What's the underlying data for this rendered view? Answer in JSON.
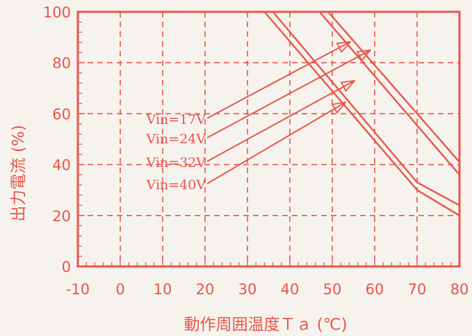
{
  "colors": {
    "primary": "#e8554a",
    "paper": "#f6f3ee"
  },
  "chart_data": {
    "type": "line",
    "title": "",
    "xlabel": "動作周囲温度Ｔａ (℃)",
    "ylabel": "出力電流 (%)",
    "xlim": [
      -10,
      80
    ],
    "ylim": [
      0,
      100
    ],
    "x_ticks": [
      -10,
      0,
      10,
      20,
      30,
      40,
      50,
      60,
      70,
      80
    ],
    "y_ticks": [
      0,
      20,
      40,
      60,
      80,
      100
    ],
    "grid": true,
    "series": [
      {
        "name": "Vin=17V",
        "x": [
          -10,
          49,
          80
        ],
        "y": [
          100,
          100,
          41
        ]
      },
      {
        "name": "Vin=24V",
        "x": [
          -10,
          47,
          80
        ],
        "y": [
          100,
          100,
          36
        ]
      },
      {
        "name": "Vin=32V",
        "x": [
          -10,
          36,
          70,
          80
        ],
        "y": [
          100,
          100,
          33,
          24
        ]
      },
      {
        "name": "Vin=40V",
        "x": [
          -10,
          34,
          70,
          80
        ],
        "y": [
          100,
          100,
          30,
          20
        ]
      }
    ]
  }
}
